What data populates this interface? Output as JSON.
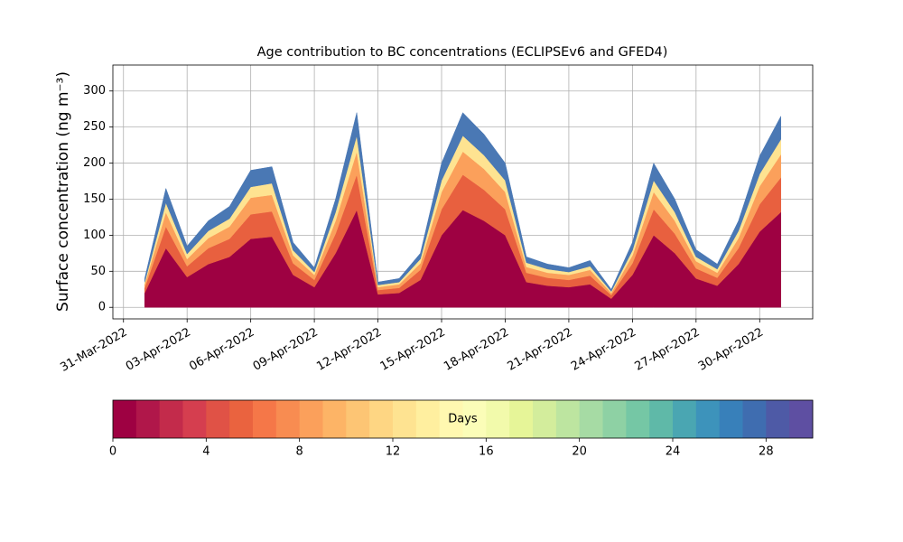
{
  "chart_data": {
    "type": "stacked_area",
    "title": "Age contribution to BC concentrations (ECLIPSEv6 and GFED4)",
    "ylabel": "Surface concentration (ng m⁻³)",
    "x": [
      "2022-04-01",
      "2022-04-02",
      "2022-04-03",
      "2022-04-04",
      "2022-04-05",
      "2022-04-06",
      "2022-04-07",
      "2022-04-08",
      "2022-04-09",
      "2022-04-10",
      "2022-04-11",
      "2022-04-12",
      "2022-04-13",
      "2022-04-14",
      "2022-04-15",
      "2022-04-16",
      "2022-04-17",
      "2022-04-18",
      "2022-04-19",
      "2022-04-20",
      "2022-04-21",
      "2022-04-22",
      "2022-04-23",
      "2022-04-24",
      "2022-04-25",
      "2022-04-26",
      "2022-04-27",
      "2022-04-28",
      "2022-04-29",
      "2022-04-30",
      "2022-05-01"
    ],
    "series": [
      {
        "color": "#9e0142",
        "values": [
          20,
          82,
          42,
          60,
          70,
          95,
          98,
          45,
          28,
          75,
          135,
          18,
          20,
          38,
          100,
          135,
          120,
          100,
          35,
          30,
          28,
          32,
          12,
          45,
          100,
          75,
          40,
          30,
          60,
          105,
          132
        ]
      },
      {
        "color": "#e8603f",
        "values": [
          7,
          30,
          15,
          22,
          25,
          34,
          35,
          16,
          10,
          27,
          49,
          6,
          7,
          14,
          36,
          49,
          43,
          36,
          13,
          11,
          10,
          12,
          5,
          16,
          36,
          27,
          14,
          11,
          22,
          38,
          48
        ]
      },
      {
        "color": "#fba05b",
        "values": [
          5,
          20,
          10,
          14,
          17,
          23,
          23,
          11,
          7,
          18,
          32,
          4,
          5,
          9,
          24,
          32,
          29,
          24,
          8,
          7,
          7,
          8,
          3,
          11,
          24,
          18,
          10,
          7,
          14,
          25,
          32
        ]
      },
      {
        "color": "#fee391",
        "values": [
          3,
          13,
          7,
          10,
          11,
          15,
          16,
          7,
          4,
          12,
          22,
          3,
          3,
          6,
          16,
          22,
          19,
          16,
          6,
          5,
          4,
          5,
          2,
          7,
          16,
          12,
          6,
          5,
          10,
          17,
          21
        ]
      },
      {
        "color": "#4a78b4",
        "values": [
          5,
          20,
          11,
          14,
          17,
          23,
          23,
          11,
          6,
          18,
          32,
          4,
          5,
          8,
          24,
          32,
          29,
          24,
          8,
          7,
          6,
          8,
          3,
          11,
          24,
          18,
          10,
          7,
          14,
          25,
          32
        ]
      }
    ],
    "xlim": [
      "2022-03-30T12:00:00Z",
      "2022-05-02T12:00:00Z"
    ],
    "xticks": [
      {
        "value": "2022-03-31",
        "label": "31-Mar-2022"
      },
      {
        "value": "2022-04-03",
        "label": "03-Apr-2022"
      },
      {
        "value": "2022-04-06",
        "label": "06-Apr-2022"
      },
      {
        "value": "2022-04-09",
        "label": "09-Apr-2022"
      },
      {
        "value": "2022-04-12",
        "label": "12-Apr-2022"
      },
      {
        "value": "2022-04-15",
        "label": "15-Apr-2022"
      },
      {
        "value": "2022-04-18",
        "label": "18-Apr-2022"
      },
      {
        "value": "2022-04-21",
        "label": "21-Apr-2022"
      },
      {
        "value": "2022-04-24",
        "label": "24-Apr-2022"
      },
      {
        "value": "2022-04-27",
        "label": "27-Apr-2022"
      },
      {
        "value": "2022-04-30",
        "label": "30-Apr-2022"
      }
    ],
    "ylim": [
      -16,
      336
    ],
    "yticks": [
      0,
      50,
      100,
      150,
      200,
      250,
      300
    ],
    "grid": true,
    "colorbar": {
      "label": "Days",
      "lim": [
        0,
        30
      ],
      "ticks": [
        0,
        4,
        8,
        12,
        16,
        20,
        24,
        28
      ],
      "colors": [
        "#9e0142",
        "#b0174a",
        "#c32b4b",
        "#d53e4f",
        "#e05246",
        "#ea633f",
        "#f57748",
        "#f88c51",
        "#fba05b",
        "#fdb466",
        "#fdc574",
        "#fed683",
        "#fee391",
        "#ffef9f",
        "#fff8b0",
        "#fbfdb8",
        "#f2faab",
        "#e6f598",
        "#d3ed9c",
        "#bde5a0",
        "#a6dba4",
        "#8ed1a4",
        "#75c7a5",
        "#5fb9a8",
        "#4aa6b2",
        "#3d93bb",
        "#3880ba",
        "#3f6db0",
        "#4e5aa6",
        "#5e4fa2"
      ]
    }
  }
}
